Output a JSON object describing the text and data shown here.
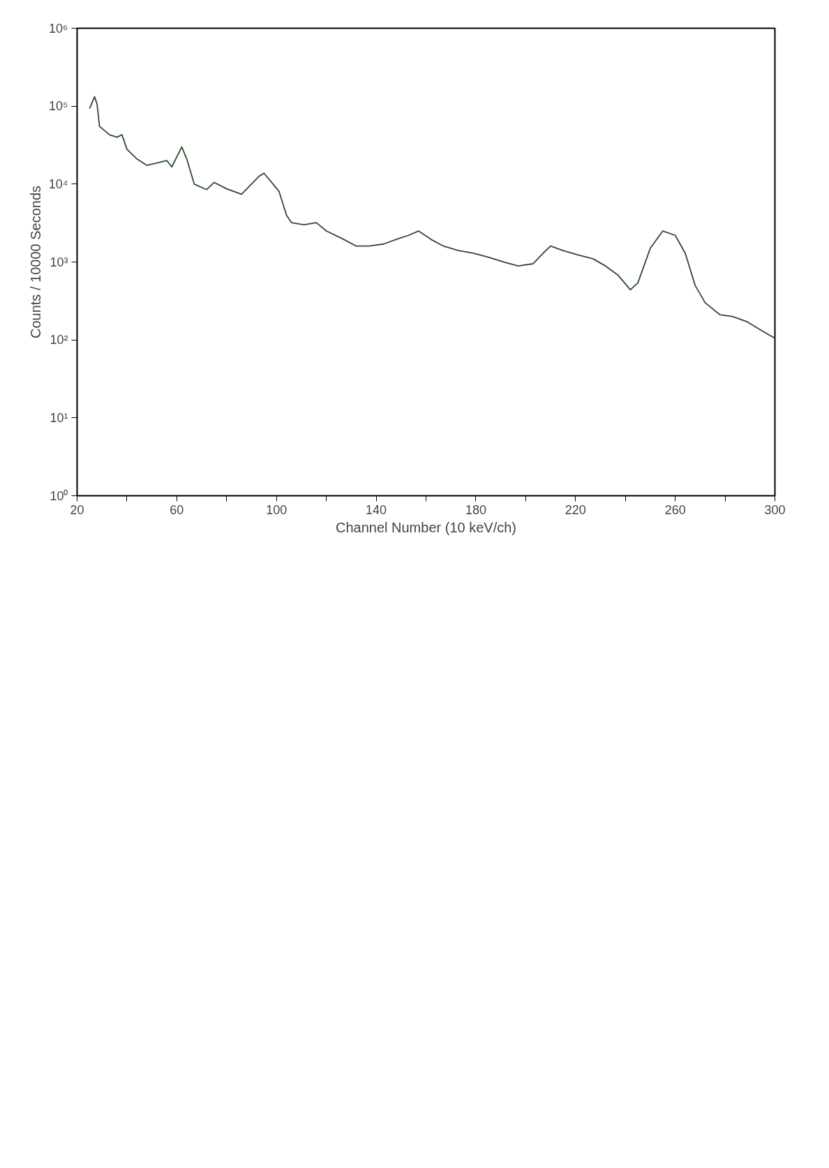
{
  "chart_data": {
    "type": "line",
    "xlabel": "Channel Number (10 keV/ch)",
    "ylabel": "Counts / 10000 Seconds",
    "log": "y",
    "grid": false,
    "marker": "none",
    "line_style": "solid",
    "xlim": [
      20,
      300
    ],
    "xticks": [
      20,
      {
        "value": 40,
        "label": null
      },
      60,
      {
        "value": 80,
        "label": null
      },
      100,
      {
        "value": 120,
        "label": null
      },
      140,
      {
        "value": 160,
        "label": null
      },
      180,
      {
        "value": 200,
        "label": null
      },
      220,
      {
        "value": 240,
        "label": null
      },
      260,
      {
        "value": 280,
        "label": null
      },
      300
    ],
    "ylim": [
      1,
      1000000
    ],
    "yticks": [
      {
        "value": 1,
        "label": "10⁰"
      },
      {
        "value": 10,
        "label": "10¹"
      },
      {
        "value": 100,
        "label": "10²"
      },
      {
        "value": 1000,
        "label": "10³"
      },
      {
        "value": 10000,
        "label": "10⁴"
      },
      {
        "value": 100000,
        "label": "10⁵"
      },
      {
        "value": 1000000,
        "label": "10⁶"
      }
    ],
    "series": [
      {
        "color": "#2e4a2e",
        "x": [
          25,
          27,
          28,
          29,
          33,
          36,
          38,
          40,
          44,
          48,
          52,
          56,
          58,
          62,
          64,
          67,
          72,
          75,
          80,
          86,
          93,
          95,
          101,
          104,
          106,
          111,
          116,
          120,
          127,
          132,
          137,
          143,
          148,
          153,
          157,
          162,
          167,
          173,
          179,
          185,
          192,
          197,
          203,
          207,
          210,
          215,
          221,
          227,
          232,
          237,
          242,
          245,
          250,
          255,
          260,
          264,
          268,
          272,
          278,
          283,
          289,
          295,
          300
        ],
        "values": [
          93000,
          132000,
          107000,
          55000,
          43000,
          40000,
          43000,
          28000,
          21000,
          17400,
          18600,
          20000,
          16600,
          30000,
          21000,
          10000,
          8500,
          10500,
          8700,
          7400,
          12600,
          13800,
          8100,
          4000,
          3200,
          3000,
          3200,
          2500,
          1950,
          1600,
          1600,
          1700,
          1950,
          2200,
          2500,
          1950,
          1600,
          1400,
          1300,
          1150,
          980,
          890,
          950,
          1300,
          1600,
          1400,
          1230,
          1100,
          890,
          680,
          440,
          540,
          1500,
          2500,
          2200,
          1300,
          500,
          300,
          210,
          200,
          170,
          130,
          105
        ]
      }
    ]
  }
}
